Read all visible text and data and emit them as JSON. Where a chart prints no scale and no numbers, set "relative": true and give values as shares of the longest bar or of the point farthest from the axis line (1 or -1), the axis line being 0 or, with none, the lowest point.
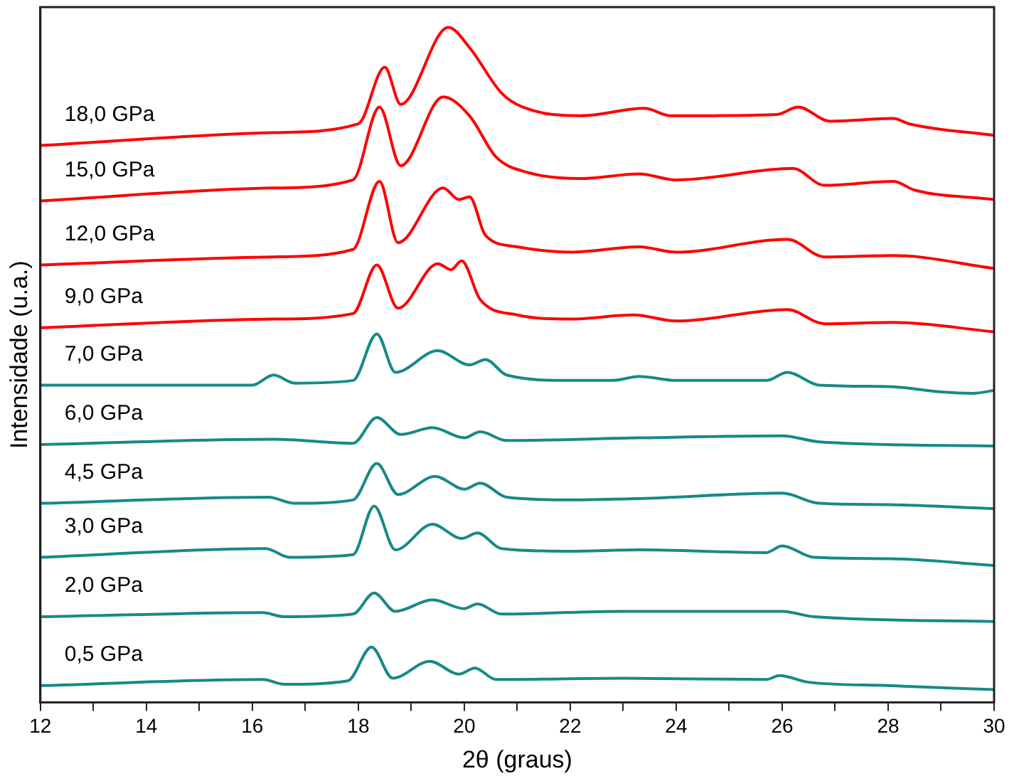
{
  "chart_data": {
    "type": "line",
    "relative": true,
    "xlabel": "2θ (graus)",
    "ylabel": "Intensidade (u.a.)",
    "xlim": [
      12,
      30
    ],
    "xticks": [
      12,
      {
        "value": 13,
        "label": null
      },
      14,
      {
        "value": 15,
        "label": null
      },
      16,
      {
        "value": 17,
        "label": null
      },
      18,
      {
        "value": 19,
        "label": null
      },
      20,
      {
        "value": 21,
        "label": null
      },
      22,
      {
        "value": 23,
        "label": null
      },
      24,
      {
        "value": 25,
        "label": null
      },
      26,
      {
        "value": 27,
        "label": null
      },
      28,
      {
        "value": 29,
        "label": null
      },
      30
    ],
    "grid": false,
    "legend": false,
    "marker": "none",
    "line_style": "solid",
    "series": [
      {
        "name": "18,0 GPa",
        "color": "#ff0000",
        "x": [
          12,
          16.4,
          18.0,
          18.5,
          18.8,
          19.7,
          20.1,
          20.7,
          21.1,
          22.2,
          23.4,
          23.9,
          25.9,
          26.3,
          26.9,
          28.1,
          28.4,
          30
        ],
        "values": [
          0.825,
          0.844,
          0.857,
          0.941,
          0.886,
          1,
          0.97,
          0.903,
          0.882,
          0.869,
          0.88,
          0.869,
          0.871,
          0.882,
          0.861,
          0.865,
          0.857,
          0.84
        ]
      },
      {
        "name": "15,0 GPa",
        "color": "#ff0000",
        "x": [
          12,
          16.4,
          17.9,
          18.4,
          18.8,
          19.6,
          20.1,
          20.6,
          21.2,
          22.2,
          23.3,
          24,
          26.2,
          26.8,
          28.1,
          28.5,
          30
        ],
        "values": [
          0.743,
          0.762,
          0.774,
          0.882,
          0.795,
          0.897,
          0.869,
          0.808,
          0.785,
          0.776,
          0.783,
          0.774,
          0.791,
          0.766,
          0.772,
          0.759,
          0.745
        ]
      },
      {
        "name": "12,0 GPa",
        "color": "#ff0000",
        "x": [
          12,
          16.4,
          17.9,
          18.4,
          18.75,
          19.6,
          19.9,
          20.1,
          20.4,
          21,
          22,
          23.3,
          24,
          26.1,
          26.8,
          28.1,
          30
        ],
        "values": [
          0.648,
          0.66,
          0.671,
          0.772,
          0.681,
          0.762,
          0.745,
          0.749,
          0.692,
          0.675,
          0.667,
          0.675,
          0.667,
          0.686,
          0.66,
          0.662,
          0.643
        ]
      },
      {
        "name": "9,0 GPa",
        "color": "#ff0000",
        "x": [
          12,
          16.4,
          17.9,
          18.35,
          18.75,
          19.5,
          19.75,
          19.95,
          20.3,
          21,
          22,
          23.2,
          24,
          26.1,
          26.8,
          28.1,
          30
        ],
        "values": [
          0.555,
          0.568,
          0.576,
          0.648,
          0.584,
          0.65,
          0.641,
          0.654,
          0.597,
          0.574,
          0.568,
          0.574,
          0.565,
          0.582,
          0.561,
          0.563,
          0.549
        ]
      },
      {
        "name": "7,0 GPa",
        "color": "#178a87",
        "x": [
          12,
          16.0,
          16.4,
          16.8,
          17.9,
          18.35,
          18.7,
          19.5,
          20.1,
          20.4,
          20.8,
          22,
          22.8,
          23.3,
          24,
          25.7,
          26.1,
          26.7,
          28,
          29,
          29.6,
          30
        ],
        "values": [
          0.47,
          0.47,
          0.485,
          0.473,
          0.477,
          0.546,
          0.489,
          0.521,
          0.5,
          0.508,
          0.485,
          0.477,
          0.477,
          0.483,
          0.477,
          0.477,
          0.489,
          0.47,
          0.468,
          0.46,
          0.458,
          0.462
        ]
      },
      {
        "name": "6,0 GPa",
        "color": "#178a87",
        "x": [
          12,
          16.4,
          17.9,
          18.35,
          18.8,
          19.4,
          20.0,
          20.3,
          20.8,
          23.3,
          26.0,
          26.7,
          30
        ],
        "values": [
          0.382,
          0.39,
          0.384,
          0.422,
          0.397,
          0.407,
          0.392,
          0.401,
          0.388,
          0.392,
          0.395,
          0.386,
          0.38
        ]
      },
      {
        "name": "4,5 GPa",
        "color": "#178a87",
        "x": [
          12,
          16.3,
          16.8,
          17.9,
          18.35,
          18.75,
          19.45,
          20.0,
          20.3,
          20.8,
          22,
          23.3,
          26.0,
          26.7,
          28,
          30
        ],
        "values": [
          0.295,
          0.304,
          0.295,
          0.3,
          0.354,
          0.308,
          0.335,
          0.316,
          0.325,
          0.304,
          0.3,
          0.302,
          0.31,
          0.295,
          0.293,
          0.287
        ]
      },
      {
        "name": "3,0 GPa",
        "color": "#178a87",
        "x": [
          12,
          16.25,
          16.7,
          17.9,
          18.3,
          18.7,
          19.4,
          19.95,
          20.25,
          20.7,
          22,
          23.3,
          25.7,
          26.0,
          26.6,
          28,
          30
        ],
        "values": [
          0.215,
          0.228,
          0.215,
          0.219,
          0.291,
          0.226,
          0.264,
          0.243,
          0.251,
          0.228,
          0.224,
          0.226,
          0.222,
          0.232,
          0.215,
          0.213,
          0.203
        ]
      },
      {
        "name": "2,0 GPa",
        "color": "#178a87",
        "x": [
          12,
          16.2,
          16.6,
          17.9,
          18.3,
          18.7,
          19.4,
          20.0,
          20.25,
          20.7,
          23,
          26.0,
          26.6,
          30
        ],
        "values": [
          0.127,
          0.133,
          0.127,
          0.131,
          0.162,
          0.135,
          0.152,
          0.139,
          0.146,
          0.131,
          0.135,
          0.135,
          0.127,
          0.12
        ]
      },
      {
        "name": "0,5 GPa",
        "color": "#178a87",
        "x": [
          12,
          16.2,
          16.6,
          17.8,
          18.25,
          18.65,
          19.35,
          19.9,
          20.2,
          20.6,
          23,
          25.7,
          25.95,
          26.5,
          28,
          30
        ],
        "values": [
          0.025,
          0.034,
          0.027,
          0.032,
          0.082,
          0.036,
          0.061,
          0.042,
          0.051,
          0.034,
          0.036,
          0.034,
          0.04,
          0.03,
          0.025,
          0.019
        ]
      }
    ]
  }
}
